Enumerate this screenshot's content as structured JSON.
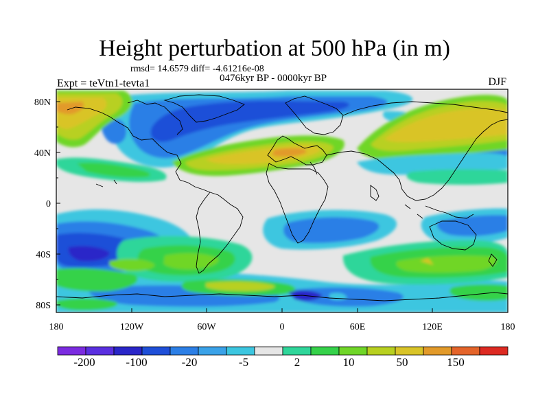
{
  "title": "Height perturbation at 500 hPa (in m)",
  "stats": "rmsd= 14.6579 diff= -4.61216e-08",
  "experiment": "Expt = teVtn1-tevta1",
  "period": "0476kyr BP - 0000kyr BP",
  "season": "DJF",
  "map": {
    "lat_ticks": [
      "80N",
      "40N",
      "0",
      "40S",
      "80S"
    ],
    "lon_ticks": [
      "180",
      "120W",
      "60W",
      "0",
      "60E",
      "120E",
      "180"
    ]
  },
  "colorbar": {
    "labels": [
      "-200",
      "-100",
      "-20",
      "-5",
      "2",
      "10",
      "50",
      "150"
    ],
    "colors": [
      "#7b2be0",
      "#5a2fe0",
      "#2a26c8",
      "#1f4fd8",
      "#2c7fe6",
      "#3aa2e8",
      "#3cc6e0",
      "#e6e6e6",
      "#2fd69a",
      "#35d24a",
      "#70d628",
      "#b8d020",
      "#d9c428",
      "#e29a2a",
      "#e4642a",
      "#dd2a22"
    ]
  }
}
